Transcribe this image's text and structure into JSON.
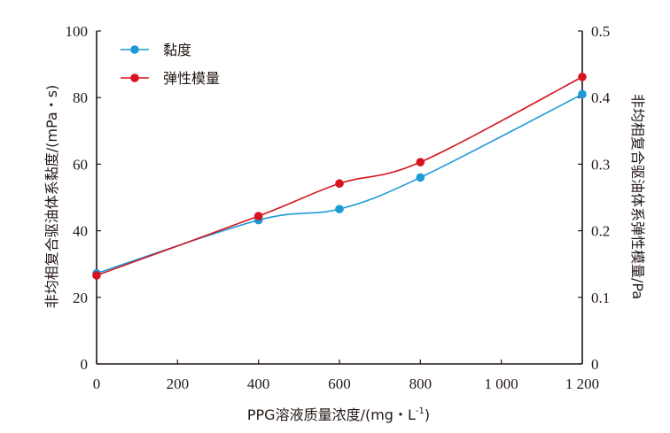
{
  "chart_data": {
    "type": "line",
    "x": [
      0,
      400,
      600,
      800,
      1200
    ],
    "xlim": [
      0,
      1200
    ],
    "x_ticks": [
      "0",
      "200",
      "400",
      "600",
      "800",
      "1 000",
      "1 200"
    ],
    "x_tick_values": [
      0,
      200,
      400,
      600,
      800,
      1000,
      1200
    ],
    "xlabel": "PPG溶液质量浓度/(mg・L",
    "xlabel_sup": "-1",
    "xlabel_end": ")",
    "ylabel_left": "非均相复合驱油体系黏度/(mPa・s)",
    "ylim_left": [
      0,
      100
    ],
    "y_ticks_left": [
      "0",
      "20",
      "40",
      "60",
      "80",
      "100"
    ],
    "y_tick_values_left": [
      0,
      20,
      40,
      60,
      80,
      100
    ],
    "ylabel_right": "非均相复合驱油体系弹性模量/Pa",
    "ylim_right": [
      0,
      0.5
    ],
    "y_ticks_right": [
      "0",
      "0.1",
      "0.2",
      "0.3",
      "0.4",
      "0.5"
    ],
    "y_tick_values_right": [
      0,
      0.1,
      0.2,
      0.3,
      0.4,
      0.5
    ],
    "grid": false,
    "legend_position": "top-left",
    "series": [
      {
        "name": "黏度",
        "axis": "left",
        "color": "#1b9ad6",
        "values": [
          27.2,
          43.2,
          46.5,
          56.0,
          81.0
        ]
      },
      {
        "name": "弹性模量",
        "axis": "right",
        "color": "#d7131e",
        "values": [
          0.133,
          0.222,
          0.271,
          0.303,
          0.431
        ]
      }
    ]
  }
}
